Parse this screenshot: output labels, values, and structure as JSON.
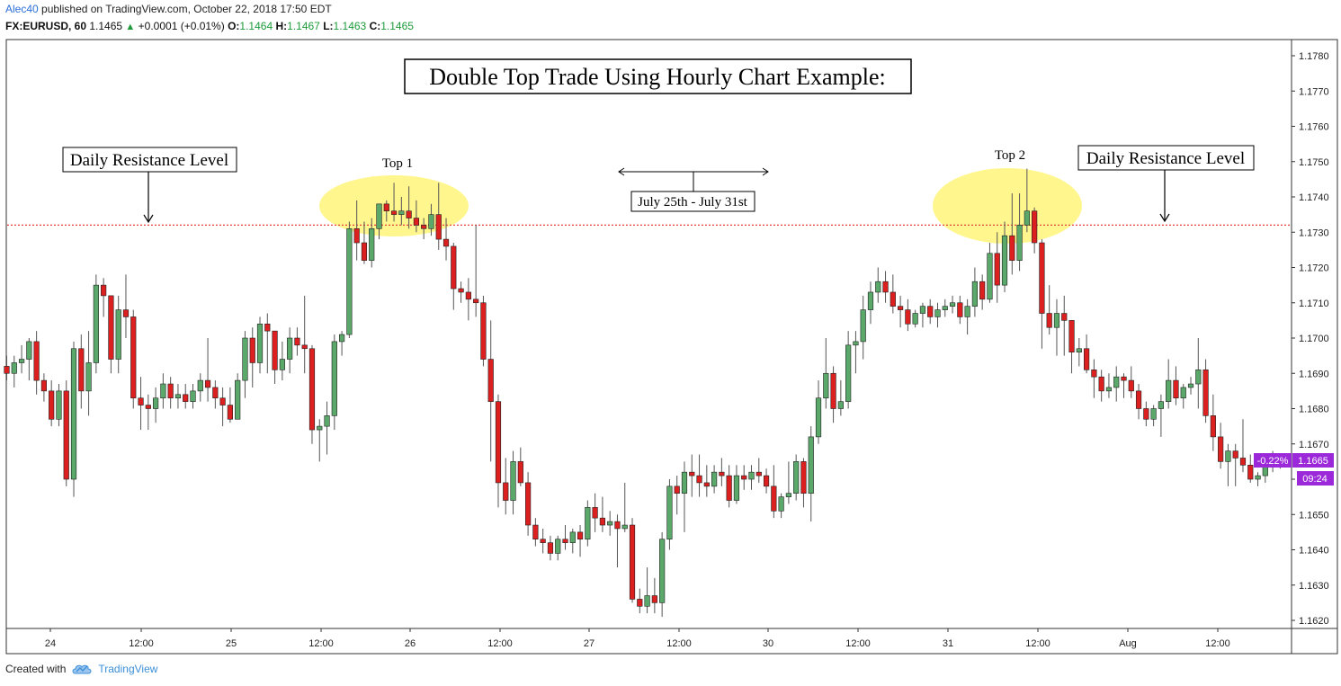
{
  "header": {
    "user": "Alec40",
    "published_text": "published on TradingView.com, October 22, 2018 17:50 EDT",
    "symbol": "FX:EURUSD, 60",
    "last": "1.1465",
    "up_arrow": "▲",
    "change": "+0.0001 (+0.01%)",
    "o_label": "O:",
    "o_value": "1.1464",
    "h_label": "H:",
    "h_value": "1.1467",
    "l_label": "L:",
    "l_value": "1.1463",
    "c_label": "C:",
    "c_value": "1.1465"
  },
  "footer": {
    "created_with": "Created with",
    "brand": "TradingView"
  },
  "colors": {
    "up": "#5aa96a",
    "down": "#dc1f1f",
    "resistance": "#e8413e",
    "highlight": "#fff47a",
    "badge": "#9b28d9"
  },
  "chart_data": {
    "type": "candlestick",
    "title": "Double Top Trade Using Hourly Chart Example:",
    "ylim": [
      1.1615,
      1.1785
    ],
    "y_ticks": [
      "1.1780",
      "1.1770",
      "1.1760",
      "1.1750",
      "1.1740",
      "1.1730",
      "1.1720",
      "1.1710",
      "1.1700",
      "1.1690",
      "1.1680",
      "1.1670",
      "1.1660",
      "1.1650",
      "1.1640",
      "1.1630",
      "1.1620"
    ],
    "x_ticks": [
      "24",
      "12:00",
      "25",
      "12:00",
      "26",
      "12:00",
      "27",
      "12:00",
      "30",
      "12:00",
      "31",
      "12:00",
      "Aug",
      "12:00"
    ],
    "resistance_level": 1.1732,
    "annotations": {
      "resistance_left": "Daily Resistance Level",
      "resistance_right": "Daily Resistance Level",
      "top1": "Top 1",
      "top2": "Top 2",
      "range": "July 25th - July 31st"
    },
    "current_change": "-0.22%",
    "current_price": "1.1665",
    "current_time": "09:24",
    "candles": [
      [
        1.1692,
        1.1695,
        1.1688,
        1.169
      ],
      [
        1.169,
        1.1695,
        1.1686,
        1.1693
      ],
      [
        1.1693,
        1.1698,
        1.169,
        1.1694
      ],
      [
        1.1694,
        1.17,
        1.1688,
        1.1699
      ],
      [
        1.1699,
        1.1702,
        1.1684,
        1.1688
      ],
      [
        1.1688,
        1.169,
        1.1682,
        1.1685
      ],
      [
        1.1685,
        1.1688,
        1.1675,
        1.1677
      ],
      [
        1.1677,
        1.1687,
        1.1675,
        1.1685
      ],
      [
        1.1685,
        1.1688,
        1.1658,
        1.166
      ],
      [
        1.166,
        1.1699,
        1.1655,
        1.1697
      ],
      [
        1.1697,
        1.1701,
        1.168,
        1.1685
      ],
      [
        1.1685,
        1.1702,
        1.1678,
        1.1693
      ],
      [
        1.1693,
        1.1718,
        1.169,
        1.1715
      ],
      [
        1.1715,
        1.1717,
        1.1706,
        1.1712
      ],
      [
        1.1712,
        1.1712,
        1.169,
        1.1694
      ],
      [
        1.1694,
        1.1712,
        1.169,
        1.1708
      ],
      [
        1.1708,
        1.1718,
        1.17,
        1.1706
      ],
      [
        1.1706,
        1.1708,
        1.168,
        1.1683
      ],
      [
        1.1683,
        1.1689,
        1.1674,
        1.1681
      ],
      [
        1.1681,
        1.1684,
        1.1674,
        1.168
      ],
      [
        1.168,
        1.1686,
        1.1676,
        1.1683
      ],
      [
        1.1683,
        1.169,
        1.168,
        1.1687
      ],
      [
        1.1687,
        1.1689,
        1.168,
        1.1683
      ],
      [
        1.1683,
        1.1687,
        1.168,
        1.1684
      ],
      [
        1.1684,
        1.1687,
        1.168,
        1.1682
      ],
      [
        1.1682,
        1.1687,
        1.168,
        1.1685
      ],
      [
        1.1685,
        1.169,
        1.1682,
        1.1688
      ],
      [
        1.1688,
        1.17,
        1.1682,
        1.1686
      ],
      [
        1.1686,
        1.1688,
        1.168,
        1.1683
      ],
      [
        1.1683,
        1.1686,
        1.1675,
        1.1681
      ],
      [
        1.1681,
        1.1686,
        1.1676,
        1.1677
      ],
      [
        1.1677,
        1.169,
        1.1677,
        1.1688
      ],
      [
        1.1688,
        1.1702,
        1.1683,
        1.17
      ],
      [
        1.17,
        1.1703,
        1.1686,
        1.1693
      ],
      [
        1.1693,
        1.1706,
        1.169,
        1.1704
      ],
      [
        1.1704,
        1.1707,
        1.169,
        1.1702
      ],
      [
        1.1702,
        1.1702,
        1.1687,
        1.1691
      ],
      [
        1.1691,
        1.1699,
        1.1688,
        1.1694
      ],
      [
        1.1694,
        1.1703,
        1.169,
        1.17
      ],
      [
        1.17,
        1.1703,
        1.1695,
        1.1698
      ],
      [
        1.1698,
        1.1712,
        1.169,
        1.1697
      ],
      [
        1.1697,
        1.1698,
        1.167,
        1.1674
      ],
      [
        1.1674,
        1.1677,
        1.1665,
        1.1675
      ],
      [
        1.1675,
        1.1682,
        1.1667,
        1.1678
      ],
      [
        1.1678,
        1.1701,
        1.1674,
        1.1699
      ],
      [
        1.1699,
        1.1702,
        1.1695,
        1.1701
      ],
      [
        1.1701,
        1.1733,
        1.17,
        1.1731
      ],
      [
        1.1731,
        1.1739,
        1.1722,
        1.1727
      ],
      [
        1.1727,
        1.1733,
        1.1721,
        1.1722
      ],
      [
        1.1722,
        1.1734,
        1.172,
        1.1731
      ],
      [
        1.1731,
        1.1738,
        1.1728,
        1.1738
      ],
      [
        1.1738,
        1.1739,
        1.1733,
        1.1736
      ],
      [
        1.1736,
        1.1744,
        1.1733,
        1.1735
      ],
      [
        1.1735,
        1.174,
        1.1732,
        1.1736
      ],
      [
        1.1736,
        1.1743,
        1.1731,
        1.1734
      ],
      [
        1.1734,
        1.1739,
        1.173,
        1.1732
      ],
      [
        1.1732,
        1.1734,
        1.1728,
        1.1731
      ],
      [
        1.1731,
        1.1738,
        1.1729,
        1.1735
      ],
      [
        1.1735,
        1.1744,
        1.1725,
        1.1728
      ],
      [
        1.1728,
        1.1734,
        1.1722,
        1.1726
      ],
      [
        1.1726,
        1.1727,
        1.1708,
        1.1714
      ],
      [
        1.1714,
        1.1716,
        1.171,
        1.1713
      ],
      [
        1.1713,
        1.1717,
        1.1705,
        1.1711
      ],
      [
        1.1711,
        1.1732,
        1.1706,
        1.171
      ],
      [
        1.171,
        1.1712,
        1.1692,
        1.1694
      ],
      [
        1.1694,
        1.1705,
        1.1665,
        1.1682
      ],
      [
        1.1682,
        1.1684,
        1.1652,
        1.1659
      ],
      [
        1.1659,
        1.1666,
        1.165,
        1.1654
      ],
      [
        1.1654,
        1.1668,
        1.165,
        1.1665
      ],
      [
        1.1665,
        1.1669,
        1.1658,
        1.1659
      ],
      [
        1.1659,
        1.1662,
        1.1644,
        1.1647
      ],
      [
        1.1647,
        1.1649,
        1.1641,
        1.1643
      ],
      [
        1.1643,
        1.1646,
        1.1639,
        1.1642
      ],
      [
        1.1642,
        1.1644,
        1.1637,
        1.1639
      ],
      [
        1.1639,
        1.1644,
        1.1637,
        1.1643
      ],
      [
        1.1643,
        1.1647,
        1.164,
        1.1642
      ],
      [
        1.1642,
        1.1646,
        1.1639,
        1.1645
      ],
      [
        1.1645,
        1.1647,
        1.1638,
        1.1643
      ],
      [
        1.1643,
        1.1654,
        1.1641,
        1.1652
      ],
      [
        1.1652,
        1.1656,
        1.1645,
        1.1649
      ],
      [
        1.1649,
        1.1655,
        1.1645,
        1.1647
      ],
      [
        1.1647,
        1.1651,
        1.1644,
        1.1648
      ],
      [
        1.1648,
        1.165,
        1.1635,
        1.1646
      ],
      [
        1.1646,
        1.1659,
        1.1645,
        1.1647
      ],
      [
        1.1647,
        1.1649,
        1.1625,
        1.1626
      ],
      [
        1.1626,
        1.1629,
        1.1622,
        1.1624
      ],
      [
        1.1624,
        1.1635,
        1.1622,
        1.1627
      ],
      [
        1.1627,
        1.1632,
        1.1622,
        1.1625
      ],
      [
        1.1625,
        1.1645,
        1.1621,
        1.1643
      ],
      [
        1.1643,
        1.166,
        1.164,
        1.1658
      ],
      [
        1.1658,
        1.1661,
        1.165,
        1.1656
      ],
      [
        1.1656,
        1.1665,
        1.1645,
        1.1662
      ],
      [
        1.1662,
        1.1667,
        1.1655,
        1.1661
      ],
      [
        1.1661,
        1.1667,
        1.1655,
        1.1659
      ],
      [
        1.1659,
        1.1664,
        1.1655,
        1.1658
      ],
      [
        1.1658,
        1.1664,
        1.1656,
        1.1662
      ],
      [
        1.1662,
        1.1666,
        1.1658,
        1.1661
      ],
      [
        1.1661,
        1.1664,
        1.1652,
        1.1654
      ],
      [
        1.1654,
        1.1664,
        1.1653,
        1.1661
      ],
      [
        1.1661,
        1.1664,
        1.1657,
        1.166
      ],
      [
        1.166,
        1.1664,
        1.1657,
        1.1662
      ],
      [
        1.1662,
        1.1666,
        1.1659,
        1.1661
      ],
      [
        1.1661,
        1.1663,
        1.1656,
        1.1658
      ],
      [
        1.1658,
        1.1664,
        1.1649,
        1.1651
      ],
      [
        1.1651,
        1.1656,
        1.1649,
        1.1655
      ],
      [
        1.1655,
        1.1665,
        1.1653,
        1.1656
      ],
      [
        1.1656,
        1.1667,
        1.1654,
        1.1665
      ],
      [
        1.1665,
        1.1666,
        1.1652,
        1.1656
      ],
      [
        1.1656,
        1.1675,
        1.1648,
        1.1672
      ],
      [
        1.1672,
        1.1688,
        1.167,
        1.1683
      ],
      [
        1.1683,
        1.17,
        1.168,
        1.169
      ],
      [
        1.169,
        1.1692,
        1.1676,
        1.168
      ],
      [
        1.168,
        1.1688,
        1.1678,
        1.1682
      ],
      [
        1.1682,
        1.1702,
        1.168,
        1.1698
      ],
      [
        1.1698,
        1.1702,
        1.169,
        1.1699
      ],
      [
        1.1699,
        1.1712,
        1.1694,
        1.1708
      ],
      [
        1.1708,
        1.1716,
        1.1704,
        1.1713
      ],
      [
        1.1713,
        1.172,
        1.171,
        1.1716
      ],
      [
        1.1716,
        1.1719,
        1.171,
        1.1713
      ],
      [
        1.1713,
        1.1718,
        1.1707,
        1.1709
      ],
      [
        1.1709,
        1.1712,
        1.1703,
        1.1708
      ],
      [
        1.1708,
        1.1711,
        1.1702,
        1.1704
      ],
      [
        1.1704,
        1.1708,
        1.1703,
        1.1707
      ],
      [
        1.1707,
        1.171,
        1.1703,
        1.1709
      ],
      [
        1.1709,
        1.1711,
        1.1704,
        1.1706
      ],
      [
        1.1706,
        1.171,
        1.1703,
        1.1708
      ],
      [
        1.1708,
        1.1711,
        1.1706,
        1.1709
      ],
      [
        1.1709,
        1.1712,
        1.1707,
        1.171
      ],
      [
        1.171,
        1.1712,
        1.1704,
        1.1706
      ],
      [
        1.1706,
        1.1711,
        1.1701,
        1.1709
      ],
      [
        1.1709,
        1.172,
        1.1706,
        1.1716
      ],
      [
        1.1716,
        1.1718,
        1.1708,
        1.1711
      ],
      [
        1.1711,
        1.1727,
        1.171,
        1.1724
      ],
      [
        1.1724,
        1.173,
        1.171,
        1.1715
      ],
      [
        1.1715,
        1.1733,
        1.1713,
        1.1729
      ],
      [
        1.1729,
        1.1741,
        1.1718,
        1.1722
      ],
      [
        1.1722,
        1.1741,
        1.1719,
        1.1732
      ],
      [
        1.1732,
        1.1748,
        1.173,
        1.1736
      ],
      [
        1.1736,
        1.1737,
        1.1724,
        1.1727
      ],
      [
        1.1727,
        1.1728,
        1.1697,
        1.1707
      ],
      [
        1.1707,
        1.1715,
        1.1701,
        1.1703
      ],
      [
        1.1703,
        1.1711,
        1.1695,
        1.1707
      ],
      [
        1.1707,
        1.1712,
        1.1695,
        1.1705
      ],
      [
        1.1705,
        1.1705,
        1.169,
        1.1696
      ],
      [
        1.1696,
        1.17,
        1.1692,
        1.1697
      ],
      [
        1.1697,
        1.1701,
        1.169,
        1.1691
      ],
      [
        1.1691,
        1.1694,
        1.1683,
        1.1689
      ],
      [
        1.1689,
        1.1691,
        1.1682,
        1.1685
      ],
      [
        1.1685,
        1.169,
        1.1683,
        1.1686
      ],
      [
        1.1686,
        1.1692,
        1.1682,
        1.1689
      ],
      [
        1.1689,
        1.169,
        1.1683,
        1.1688
      ],
      [
        1.1688,
        1.1692,
        1.1683,
        1.1685
      ],
      [
        1.1685,
        1.1687,
        1.1677,
        1.168
      ],
      [
        1.168,
        1.1682,
        1.1675,
        1.1677
      ],
      [
        1.1677,
        1.1681,
        1.1675,
        1.168
      ],
      [
        1.168,
        1.1684,
        1.1672,
        1.1682
      ],
      [
        1.1682,
        1.1694,
        1.168,
        1.1688
      ],
      [
        1.1688,
        1.1692,
        1.1681,
        1.1683
      ],
      [
        1.1683,
        1.1687,
        1.168,
        1.1686
      ],
      [
        1.1686,
        1.1689,
        1.1684,
        1.1687
      ],
      [
        1.1687,
        1.17,
        1.168,
        1.1691
      ],
      [
        1.1691,
        1.1694,
        1.1676,
        1.1678
      ],
      [
        1.1678,
        1.1684,
        1.1668,
        1.1672
      ],
      [
        1.1672,
        1.1676,
        1.1663,
        1.1665
      ],
      [
        1.1665,
        1.167,
        1.1658,
        1.1668
      ],
      [
        1.1668,
        1.167,
        1.1658,
        1.1666
      ],
      [
        1.1666,
        1.1677,
        1.1662,
        1.1664
      ],
      [
        1.1664,
        1.1667,
        1.1659,
        1.166
      ],
      [
        1.166,
        1.1662,
        1.1658,
        1.1661
      ],
      [
        1.1661,
        1.1666,
        1.1659,
        1.1665
      ],
      [
        1.1665,
        1.1668,
        1.1662,
        1.1664
      ],
      [
        1.1664,
        1.1667,
        1.1663,
        1.1665
      ]
    ]
  }
}
